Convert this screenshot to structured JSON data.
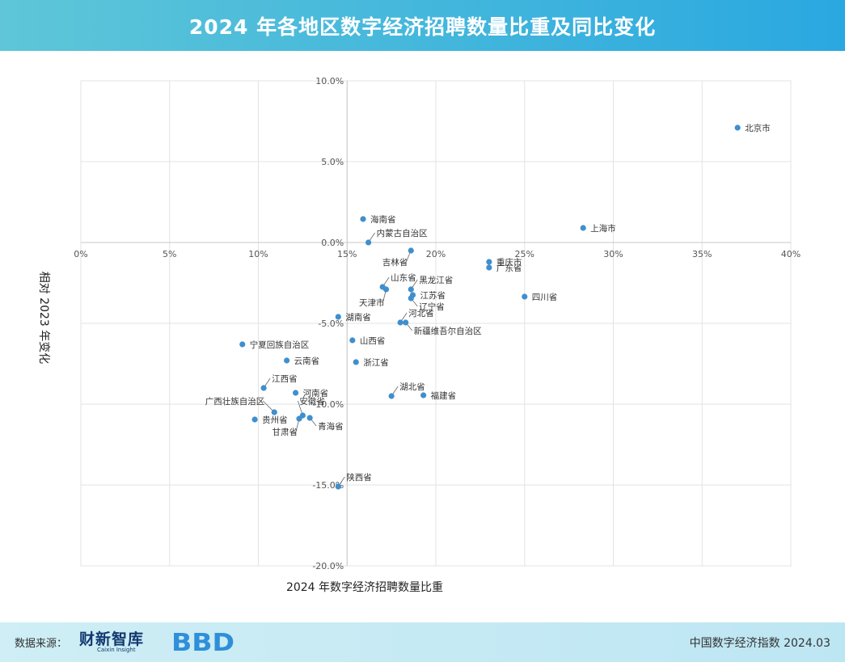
{
  "header": {
    "title": "2024 年各地区数字经济招聘数量比重及同比变化"
  },
  "chart_data": {
    "type": "scatter",
    "title": "2024 年各地区数字经济招聘数量比重及同比变化",
    "xlabel": "2024 年数字经济招聘数量比重",
    "ylabel": "相对 2023 年变化",
    "xlim": [
      0,
      40
    ],
    "ylim": [
      -20,
      10
    ],
    "xticks": [
      0,
      5,
      10,
      15,
      20,
      25,
      30,
      35,
      40
    ],
    "yticks": [
      10,
      5,
      0,
      -5,
      -10,
      -15,
      -20
    ],
    "xtick_labels": [
      "0%",
      "5%",
      "10%",
      "15%",
      "20%",
      "25%",
      "30%",
      "35%",
      "40%"
    ],
    "ytick_labels": [
      "10.0%",
      "5.0%",
      "0.0%",
      "-5.0%",
      "-10.0%",
      "-15.0%",
      "-20.0%"
    ],
    "grid": true,
    "point_color": "#3f8fce",
    "points": [
      {
        "name": "北京市",
        "x": 37.0,
        "y": 7.1,
        "label_side": "right"
      },
      {
        "name": "上海市",
        "x": 28.3,
        "y": 0.9,
        "label_side": "right"
      },
      {
        "name": "海南省",
        "x": 15.9,
        "y": 1.45,
        "label_side": "right"
      },
      {
        "name": "内蒙古自治区",
        "x": 16.2,
        "y": 0.0,
        "label_side": "upper-right"
      },
      {
        "name": "吉林省",
        "x": 18.6,
        "y": -0.5,
        "label_side": "lower-left"
      },
      {
        "name": "重庆市",
        "x": 23.0,
        "y": -1.2,
        "label_side": "right"
      },
      {
        "name": "广东省",
        "x": 23.0,
        "y": -1.55,
        "label_side": "right"
      },
      {
        "name": "山东省",
        "x": 17.0,
        "y": -2.75,
        "label_side": "upper-right"
      },
      {
        "name": "天津市",
        "x": 17.2,
        "y": -2.9,
        "label_side": "lower"
      },
      {
        "name": "黑龙江省",
        "x": 18.6,
        "y": -2.9,
        "label_side": "upper-right"
      },
      {
        "name": "江苏省",
        "x": 18.7,
        "y": -3.25,
        "label_side": "right"
      },
      {
        "name": "辽宁省",
        "x": 18.6,
        "y": -3.45,
        "label_side": "lower-right"
      },
      {
        "name": "四川省",
        "x": 25.0,
        "y": -3.35,
        "label_side": "right"
      },
      {
        "name": "湖南省",
        "x": 14.5,
        "y": -4.6,
        "label_side": "right"
      },
      {
        "name": "河北省",
        "x": 18.0,
        "y": -4.95,
        "label_side": "upper-right"
      },
      {
        "name": "新疆维吾尔自治区",
        "x": 18.3,
        "y": -4.95,
        "label_side": "lower-right"
      },
      {
        "name": "山西省",
        "x": 15.3,
        "y": -6.05,
        "label_side": "right"
      },
      {
        "name": "宁夏回族自治区",
        "x": 9.1,
        "y": -6.3,
        "label_side": "right"
      },
      {
        "name": "云南省",
        "x": 11.6,
        "y": -7.3,
        "label_side": "right"
      },
      {
        "name": "浙江省",
        "x": 15.5,
        "y": -7.4,
        "label_side": "right"
      },
      {
        "name": "江西省",
        "x": 10.3,
        "y": -9.0,
        "label_side": "upper-right"
      },
      {
        "name": "河南省",
        "x": 12.1,
        "y": -9.3,
        "label_side": "right"
      },
      {
        "name": "湖北省",
        "x": 17.5,
        "y": -9.5,
        "label_side": "upper-right"
      },
      {
        "name": "福建省",
        "x": 19.3,
        "y": -9.45,
        "label_side": "right"
      },
      {
        "name": "广西壮族自治区",
        "x": 10.9,
        "y": -10.5,
        "label_side": "upper-left"
      },
      {
        "name": "安徽省",
        "x": 12.5,
        "y": -10.7,
        "label_side": "upper"
      },
      {
        "name": "贵州省",
        "x": 9.8,
        "y": -10.95,
        "label_side": "right"
      },
      {
        "name": "甘肃省",
        "x": 12.3,
        "y": -10.9,
        "label_side": "lower"
      },
      {
        "name": "青海省",
        "x": 12.9,
        "y": -10.85,
        "label_side": "lower-right"
      },
      {
        "name": "陕西省",
        "x": 14.5,
        "y": -15.1,
        "label_side": "upper-right"
      }
    ]
  },
  "footer": {
    "source_label": "数据来源：",
    "caixin_logo_cn": "财新智库",
    "caixin_logo_en": "Caixin Insight",
    "bbd_logo": "BBD",
    "right_text": "中国数字经济指数 2024.03"
  }
}
